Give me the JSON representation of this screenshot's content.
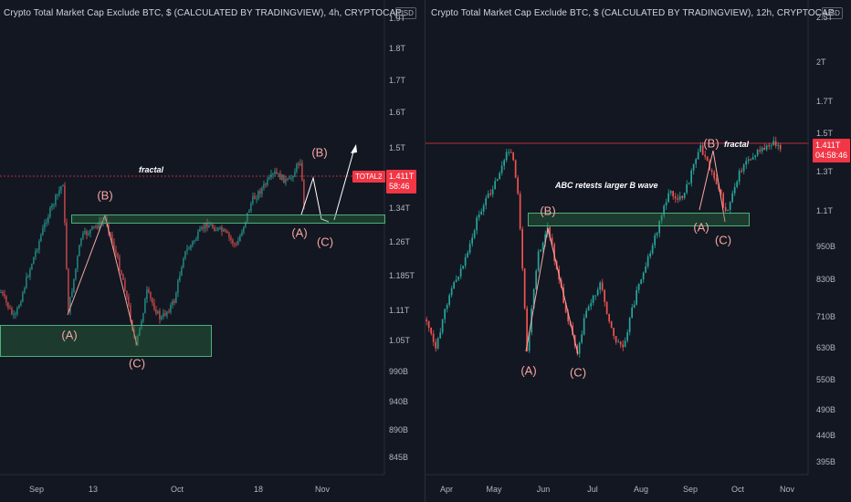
{
  "left": {
    "title": "Crypto Total Market Cap Exclude BTC, $ (CALCULATED BY TRADINGVIEW), 4h, CRYPTOCAP",
    "currency": "USD",
    "y_ticks": [
      "1.9T",
      "1.8T",
      "1.7T",
      "1.6T",
      "1.5T",
      "1.34T",
      "1.26T",
      "1.185T",
      "1.11T",
      "1.05T",
      "990B",
      "940B",
      "890B",
      "845B"
    ],
    "x_ticks": [
      "Sep",
      "13",
      "Oct",
      "18",
      "Nov"
    ],
    "price_label": "1.411T",
    "countdown": "58:46",
    "symbol_tag": "TOTAL2",
    "annotation": "fractal",
    "wave_labels": [
      "(B)",
      "(A)",
      "(C)",
      "(B)",
      "(A)",
      "(C)"
    ]
  },
  "right": {
    "title": "Crypto Total Market Cap Exclude BTC, $ (CALCULATED BY TRADINGVIEW), 12h, CRYPTOCAP",
    "currency": "USD",
    "y_ticks": [
      "2.5T",
      "2T",
      "1.7T",
      "1.5T",
      "1.3T",
      "1.1T",
      "950B",
      "830B",
      "710B",
      "630B",
      "550B",
      "490B",
      "440B",
      "395B"
    ],
    "x_ticks": [
      "Apr",
      "May",
      "Jun",
      "Jul",
      "Aug",
      "Sep",
      "Oct",
      "Nov"
    ],
    "price_label": "1.411T",
    "countdown": "04:58:46",
    "annotation_fractal": "fractal",
    "annotation_abc": "ABC retests larger B wave",
    "wave_labels": [
      "(B)",
      "(A)",
      "(C)",
      "(B)",
      "(A)",
      "(C)"
    ]
  },
  "colors": {
    "bg": "#131722",
    "up": "#26a69a",
    "down": "#ef5350",
    "accent": "#f23645",
    "wave": "#f6a7a2",
    "zone": "#4caf7a"
  }
}
